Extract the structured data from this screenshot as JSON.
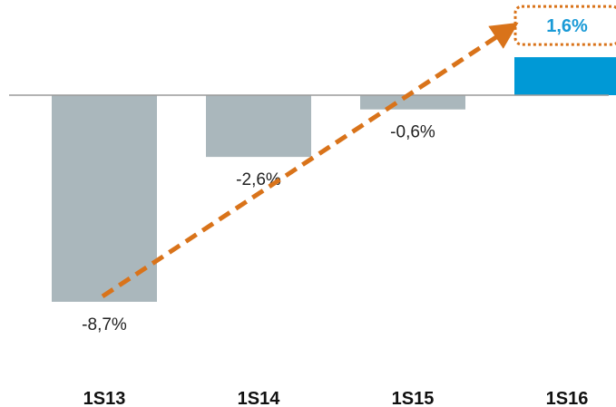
{
  "chart_data": {
    "type": "bar",
    "categories": [
      "1S13",
      "1S14",
      "1S15",
      "1S16"
    ],
    "values": [
      -8.7,
      -2.6,
      -0.6,
      1.6
    ],
    "value_labels": [
      "-8,7%",
      "-2,6%",
      "-0,6%",
      "1,6%"
    ],
    "ylim": [
      -8.7,
      1.6
    ],
    "grid": false,
    "legend": "none",
    "trend_arrow": {
      "from_category": "1S13",
      "to_category": "1S16"
    },
    "highlighted_category": "1S16"
  },
  "colors": {
    "negative_bar": "#aab7bc",
    "positive_bar": "#0099d6",
    "highlight_label": "#1a9ad6",
    "trend_arrow": "#d9731a",
    "axis": "#9a9a9a"
  }
}
